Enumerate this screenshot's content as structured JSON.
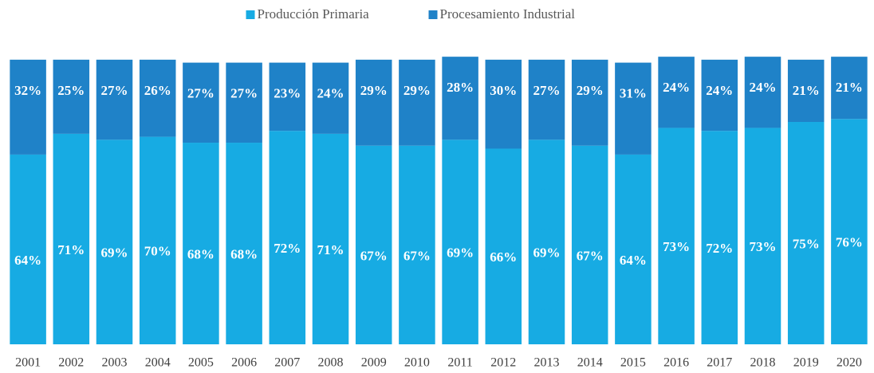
{
  "chart_data": {
    "type": "bar",
    "stacked": true,
    "categories": [
      "2001",
      "2002",
      "2003",
      "2004",
      "2005",
      "2006",
      "2007",
      "2008",
      "2009",
      "2010",
      "2011",
      "2012",
      "2013",
      "2014",
      "2015",
      "2016",
      "2017",
      "2018",
      "2019",
      "2020"
    ],
    "series": [
      {
        "name": "Producción Primaria",
        "color": "#17abe3",
        "values": [
          64,
          71,
          69,
          70,
          68,
          68,
          72,
          71,
          67,
          67,
          69,
          66,
          69,
          67,
          64,
          73,
          72,
          73,
          75,
          76
        ],
        "value_labels": [
          "64%",
          "71%",
          "69%",
          "70%",
          "68%",
          "68%",
          "72%",
          "71%",
          "67%",
          "67%",
          "69%",
          "66%",
          "69%",
          "67%",
          "64%",
          "73%",
          "72%",
          "73%",
          "75%",
          "76%"
        ]
      },
      {
        "name": "Procesamiento Industrial",
        "color": "#1f82c8",
        "values": [
          32,
          25,
          27,
          26,
          27,
          27,
          23,
          24,
          29,
          29,
          28,
          30,
          27,
          29,
          31,
          24,
          24,
          24,
          21,
          21
        ],
        "value_labels": [
          "32%",
          "25%",
          "27%",
          "26%",
          "27%",
          "27%",
          "23%",
          "24%",
          "29%",
          "29%",
          "28%",
          "30%",
          "27%",
          "29%",
          "31%",
          "24%",
          "24%",
          "24%",
          "21%",
          "21%"
        ]
      }
    ],
    "ylim": [
      0,
      100
    ],
    "legend": "top"
  }
}
